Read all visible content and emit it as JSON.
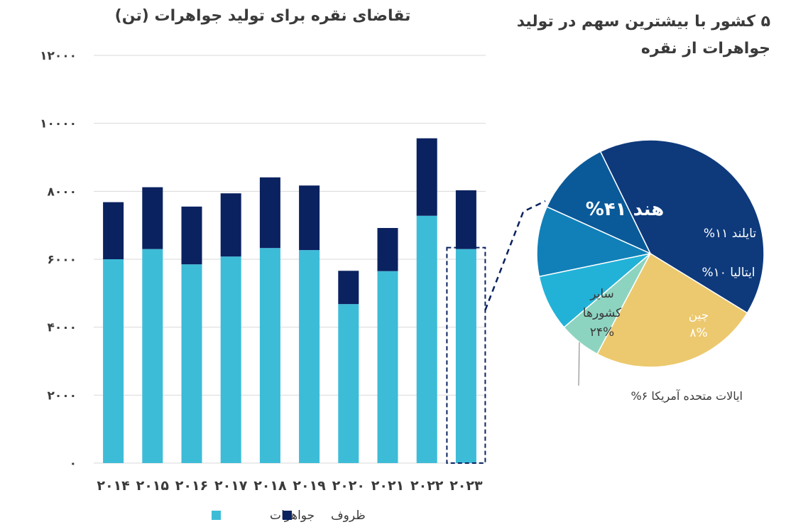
{
  "bar_chart_title": "تقاضای نقره برای تولید جواهرات (تن)",
  "pie_chart_title": "۵ کشور با بیشترین سهم در تولید جواهرات از نقره",
  "colors": {
    "jewelry": "#3dbcd8",
    "silverware": "#0b2260",
    "grid": "#d9d9d9",
    "text": "#3a3a3a",
    "highlight": "#0b2260"
  },
  "chart_data": [
    {
      "type": "bar",
      "stacked": true,
      "title": "تقاضای نقره برای تولید جواهرات (تن)",
      "categories": [
        "۲۰۱۴",
        "۲۰۱۵",
        "۲۰۱۶",
        "۲۰۱۷",
        "۲۰۱۸",
        "۲۰۱۹",
        "۲۰۲۰",
        "۲۰۲۱",
        "۲۰۲۲",
        "۲۰۲۳"
      ],
      "series": [
        {
          "name": "جواهرات",
          "color": "#3dbcd8",
          "values": [
            6000,
            6300,
            5850,
            6080,
            6330,
            6270,
            4680,
            5650,
            7280,
            6300
          ]
        },
        {
          "name": "ظروف",
          "color": "#0b2260",
          "values": [
            1680,
            1820,
            1700,
            1860,
            2080,
            1900,
            980,
            1270,
            2280,
            1730
          ]
        }
      ],
      "ylim": [
        0,
        12000
      ],
      "yticks": [
        0,
        2000,
        4000,
        6000,
        8000,
        10000,
        12000
      ],
      "ytick_labels": [
        "۰",
        "۲۰۰۰",
        "۴۰۰۰",
        "۶۰۰۰",
        "۸۰۰۰",
        "۱۰۰۰۰",
        "۱۲۰۰۰"
      ],
      "grid": true,
      "legend_position": "bottom",
      "highlighted_category": "۲۰۲۳"
    },
    {
      "type": "pie",
      "title": "۵ کشور با بیشترین سهم در تولید جواهرات از نقره",
      "slices": [
        {
          "label": "هند",
          "value": 41,
          "text": "هند ۴۱%",
          "color": "#0e3a7c"
        },
        {
          "label": "تایلند",
          "value": 11,
          "text": "تایلند ۱۱%",
          "color": "#0a5a9a"
        },
        {
          "label": "ایتالیا",
          "value": 10,
          "text": "ایتالیا ۱۰%",
          "color": "#1180b8"
        },
        {
          "label": "چین",
          "value": 8,
          "text_lines": [
            "چین",
            "۸%"
          ],
          "color": "#22b2d8"
        },
        {
          "label": "ایالات متحده آمریکا",
          "value": 6,
          "text": "ایالات متحده آمریکا ۶%",
          "color": "#8dd4c0"
        },
        {
          "label": "سایر کشورها",
          "value": 24,
          "text_lines": [
            "سایر",
            "کشورها",
            "۲۴%"
          ],
          "color": "#ecc96e"
        }
      ]
    }
  ]
}
